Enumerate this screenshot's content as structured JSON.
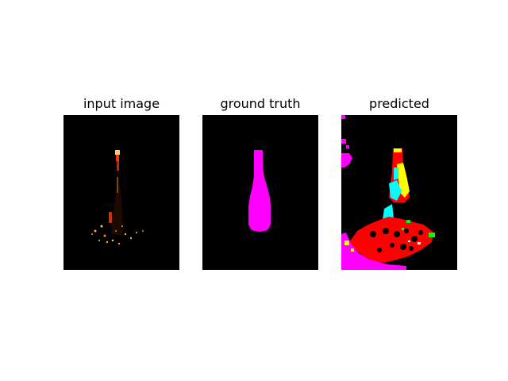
{
  "panels": [
    {
      "title": "input image"
    },
    {
      "title": "ground truth"
    },
    {
      "title": "predicted"
    }
  ],
  "colors": {
    "background": "#000000",
    "mask": "#ff00ff",
    "red": "#ff0000",
    "cyan": "#00ffff",
    "yellow": "#ffff00",
    "green": "#00ff00"
  }
}
